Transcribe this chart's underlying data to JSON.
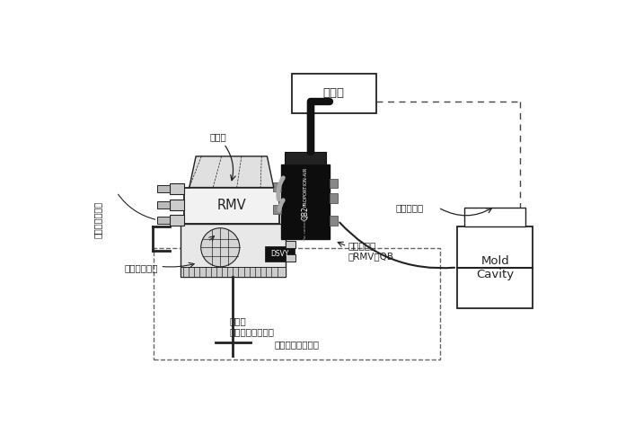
{
  "bg_color": "#ffffff",
  "fig_width": 6.87,
  "fig_height": 4.74,
  "labels": {
    "controller": "控制器",
    "mold_cavity": "Mold\nCavity",
    "rmv": "RMV",
    "dsvy": "DSVY",
    "exhaust": "排气端",
    "vacuum_sense": "受控真空感应线",
    "output_measure": "输出测量端口",
    "air_inlet": "进气口\n（真空源接此处）",
    "aux_vacuum": "辅助真空管\n从RMV到QB",
    "outlet_to_cavity": "出口端连接到腔室",
    "pressure_sensor": "压力传感器"
  },
  "line_color": "#222222",
  "dashed_color": "#444444",
  "text_color": "#222222",
  "font_size_small": 7.5,
  "font_size_box": 9.5,
  "font_size_vertical": 7.0
}
